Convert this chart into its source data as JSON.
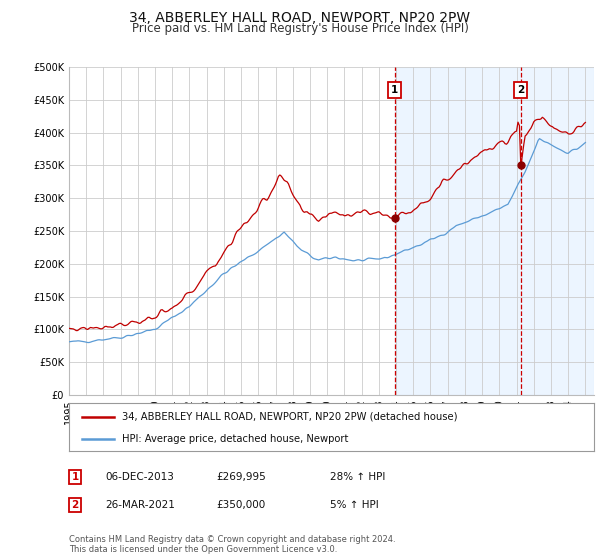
{
  "title": "34, ABBERLEY HALL ROAD, NEWPORT, NP20 2PW",
  "subtitle": "Price paid vs. HM Land Registry's House Price Index (HPI)",
  "ylim": [
    0,
    500000
  ],
  "yticks": [
    0,
    50000,
    100000,
    150000,
    200000,
    250000,
    300000,
    350000,
    400000,
    450000,
    500000
  ],
  "ytick_labels": [
    "£0",
    "£50K",
    "£100K",
    "£150K",
    "£200K",
    "£250K",
    "£300K",
    "£350K",
    "£400K",
    "£450K",
    "£500K"
  ],
  "xlim_start": 1995.0,
  "xlim_end": 2025.5,
  "xtick_years": [
    1995,
    1996,
    1997,
    1998,
    1999,
    2000,
    2001,
    2002,
    2003,
    2004,
    2005,
    2006,
    2007,
    2008,
    2009,
    2010,
    2011,
    2012,
    2013,
    2014,
    2015,
    2016,
    2017,
    2018,
    2019,
    2020,
    2021,
    2022,
    2023,
    2024,
    2025
  ],
  "hpi_color": "#5b9bd5",
  "price_color": "#c00000",
  "shaded_color": "#ddeeff",
  "shaded_alpha": 0.55,
  "shaded_start": 2013.92,
  "shaded_end": 2025.5,
  "vline1_x": 2013.92,
  "vline2_x": 2021.23,
  "vline_color": "#cc0000",
  "marker1_x": 2013.92,
  "marker1_y": 269995,
  "marker2_x": 2021.23,
  "marker2_y": 350000,
  "legend_line1": "34, ABBERLEY HALL ROAD, NEWPORT, NP20 2PW (detached house)",
  "legend_line2": "HPI: Average price, detached house, Newport",
  "table_row1": [
    "1",
    "06-DEC-2013",
    "£269,995",
    "28% ↑ HPI"
  ],
  "table_row2": [
    "2",
    "26-MAR-2021",
    "£350,000",
    "5% ↑ HPI"
  ],
  "footer": "Contains HM Land Registry data © Crown copyright and database right 2024.\nThis data is licensed under the Open Government Licence v3.0.",
  "bg_color": "#ffffff",
  "plot_bg_color": "#ffffff",
  "grid_color": "#cccccc",
  "title_fontsize": 10,
  "subtitle_fontsize": 8.5,
  "tick_fontsize": 7
}
